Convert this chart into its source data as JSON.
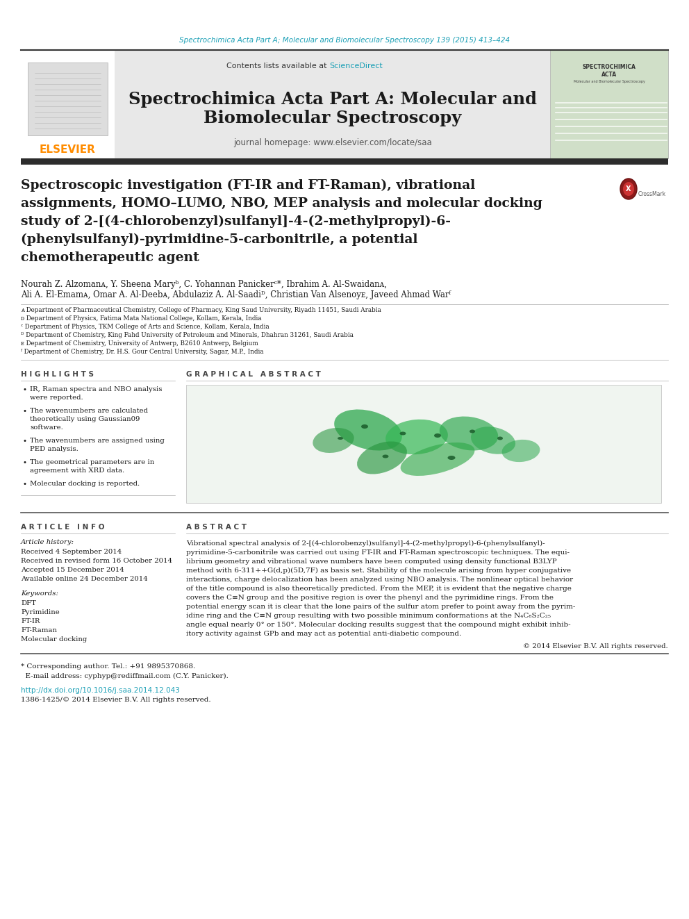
{
  "page_bg": "#ffffff",
  "header_journal_text": "Spectrochimica Acta Part A; Molecular and Biomolecular Spectroscopy 139 (2015) 413–424",
  "header_journal_color": "#1a9fb5",
  "journal_title_line1": "Spectrochimica Acta Part A: Molecular and",
  "journal_title_line2": "Biomolecular Spectroscopy",
  "journal_homepage": "journal homepage: www.elsevier.com/locate/saa",
  "contents_text": "Contents lists available at ",
  "sciencedirect_text": "ScienceDirect",
  "sciencedirect_color": "#1a9fb5",
  "elsevier_color": "#ff8c00",
  "header_bg": "#e8e8e8",
  "paper_title_lines": [
    "Spectroscopic investigation (FT-IR and FT-Raman), vibrational",
    "assignments, HOMO–LUMO, NBO, MEP analysis and molecular docking",
    "study of 2-[(4-chlorobenzyl)sulfanyl]-4-(2-methylpropyl)-6-",
    "(phenylsulfanyl)-pyrimidine-5-carbonitrile, a potential",
    "chemotherapeutic agent"
  ],
  "author_line1": "Nourah Z. Alzomanᴀ, Y. Sheena Maryᵇ, C. Yohannan Panickerᶜ*, Ibrahim A. Al-Swaidanᴀ,",
  "author_line2": "Ali A. El-Emamᴀ, Omar A. Al-Deebᴀ, Abdulaziz A. Al-Saadiᴰ, Christian Van Alsenoyᴇ, Javeed Ahmad Warᶠ",
  "affiliations": [
    "ᴀ Department of Pharmaceutical Chemistry, College of Pharmacy, King Saud University, Riyadh 11451, Saudi Arabia",
    "ᴅ Department of Physics, Fatima Mata National College, Kollam, Kerala, India",
    "ᶜ Department of Physics, TKM College of Arts and Science, Kollam, Kerala, India",
    "ᴰ Department of Chemistry, King Fahd University of Petroleum and Minerals, Dhahran 31261, Saudi Arabia",
    "ᴇ Department of Chemistry, University of Antwerp, B2610 Antwerp, Belgium",
    "ᶠ Department of Chemistry, Dr. H.S. Gour Central University, Sagar, M.P., India"
  ],
  "highlights_title": "H I G H L I G H T S",
  "highlights": [
    "IR, Raman spectra and NBO analysis\nwere reported.",
    "The wavenumbers are calculated\ntheoretically using Gaussian09\nsoftware.",
    "The wavenumbers are assigned using\nPED analysis.",
    "The geometrical parameters are in\nagreement with XRD data.",
    "Molecular docking is reported."
  ],
  "graphical_abstract_title": "G R A P H I C A L   A B S T R A C T",
  "article_info_title": "A R T I C L E   I N F O",
  "article_history_title": "Article history:",
  "article_history": [
    "Received 4 September 2014",
    "Received in revised form 16 October 2014",
    "Accepted 15 December 2014",
    "Available online 24 December 2014"
  ],
  "keywords_title": "Keywords:",
  "keywords": [
    "DFT",
    "Pyrimidine",
    "FT-IR",
    "FT-Raman",
    "Molecular docking"
  ],
  "abstract_title": "A B S T R A C T",
  "abstract_lines": [
    "Vibrational spectral analysis of 2-[(4-chlorobenzyl)sulfanyl]-4-(2-methylpropyl)-6-(phenylsulfanyl)-",
    "pyrimidine-5-carbonitrile was carried out using FT-IR and FT-Raman spectroscopic techniques. The equi-",
    "librium geometry and vibrational wave numbers have been computed using density functional B3LYP",
    "method with 6-311++G(d,p)(5D,7F) as basis set. Stability of the molecule arising from hyper conjugative",
    "interactions, charge delocalization has been analyzed using NBO analysis. The nonlinear optical behavior",
    "of the title compound is also theoretically predicted. From the MEP, it is evident that the negative charge",
    "covers the C≡N group and the positive region is over the phenyl and the pyrimidine rings. From the",
    "potential energy scan it is clear that the lone pairs of the sulfur atom prefer to point away from the pyrim-",
    "idine ring and the C≡N group resulting with two possible minimum conformations at the N₄C₈S₂C₂₅",
    "angle equal nearly 0° or 150°. Molecular docking results suggest that the compound might exhibit inhib-",
    "itory activity against GPb and may act as potential anti-diabetic compound."
  ],
  "copyright_text": "© 2014 Elsevier B.V. All rights reserved.",
  "corresponding_line1": "* Corresponding author. Tel.: +91 9895370868.",
  "corresponding_line2": "  E-mail address: cyphyp@rediffmail.com (C.Y. Panicker).",
  "doi_text": "http://dx.doi.org/10.1016/j.saa.2014.12.043",
  "issn_text": "1386-1425/© 2014 Elsevier B.V. All rights reserved.",
  "thick_bar_color": "#2c2c2c"
}
